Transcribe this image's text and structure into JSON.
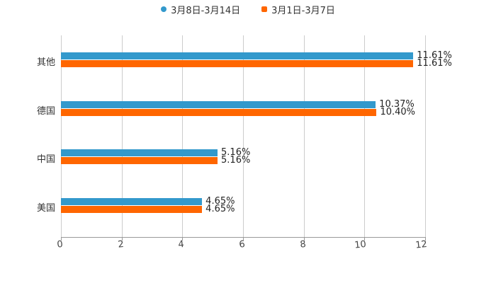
{
  "chart_data": {
    "type": "bar",
    "orientation": "horizontal",
    "title": "",
    "xlabel": "",
    "ylabel": "",
    "categories": [
      "其他",
      "德国",
      "中国",
      "美国"
    ],
    "series": [
      {
        "name": "3月8日-3月14日",
        "color": "#3399cc",
        "values": [
          11.61,
          10.37,
          5.16,
          4.65
        ],
        "labels": [
          "11.61%",
          "10.37%",
          "5.16%",
          "4.65%"
        ]
      },
      {
        "name": "3月1日-3月7日",
        "color": "#ff6600",
        "values": [
          11.61,
          10.4,
          5.16,
          4.65
        ],
        "labels": [
          "11.61%",
          "10.40%",
          "5.16%",
          "4.65%"
        ]
      }
    ],
    "xlim": [
      0,
      12
    ],
    "xticks": [
      "0",
      "2",
      "4",
      "6",
      "8",
      "10",
      "12"
    ],
    "grid": true,
    "legend_position": "top"
  },
  "legend": {
    "items": [
      {
        "label": "3月8日-3月14日",
        "color": "#3399cc"
      },
      {
        "label": "3月1日-3月7日",
        "color": "#ff6600"
      }
    ]
  }
}
